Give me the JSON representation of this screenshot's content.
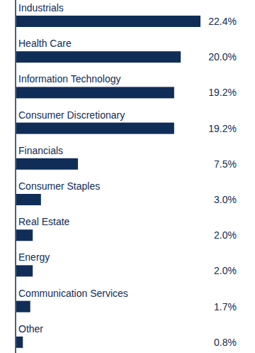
{
  "chart_data": {
    "type": "bar",
    "orientation": "horizontal",
    "categories": [
      "Industrials",
      "Health Care",
      "Information Technology",
      "Consumer Discretionary",
      "Financials",
      "Consumer Staples",
      "Real Estate",
      "Energy",
      "Communication Services",
      "Other"
    ],
    "values": [
      22.4,
      20.0,
      19.2,
      19.2,
      7.5,
      3.0,
      2.0,
      2.0,
      1.7,
      0.8
    ],
    "value_labels": [
      "22.4%",
      "20.0%",
      "19.2%",
      "19.2%",
      "7.5%",
      "3.0%",
      "2.0%",
      "2.0%",
      "1.7%",
      "0.8%"
    ],
    "color": "#0f2d57",
    "xlim": [
      0,
      22.4
    ],
    "data_labels": true,
    "tick_labels": false,
    "grid": false
  }
}
